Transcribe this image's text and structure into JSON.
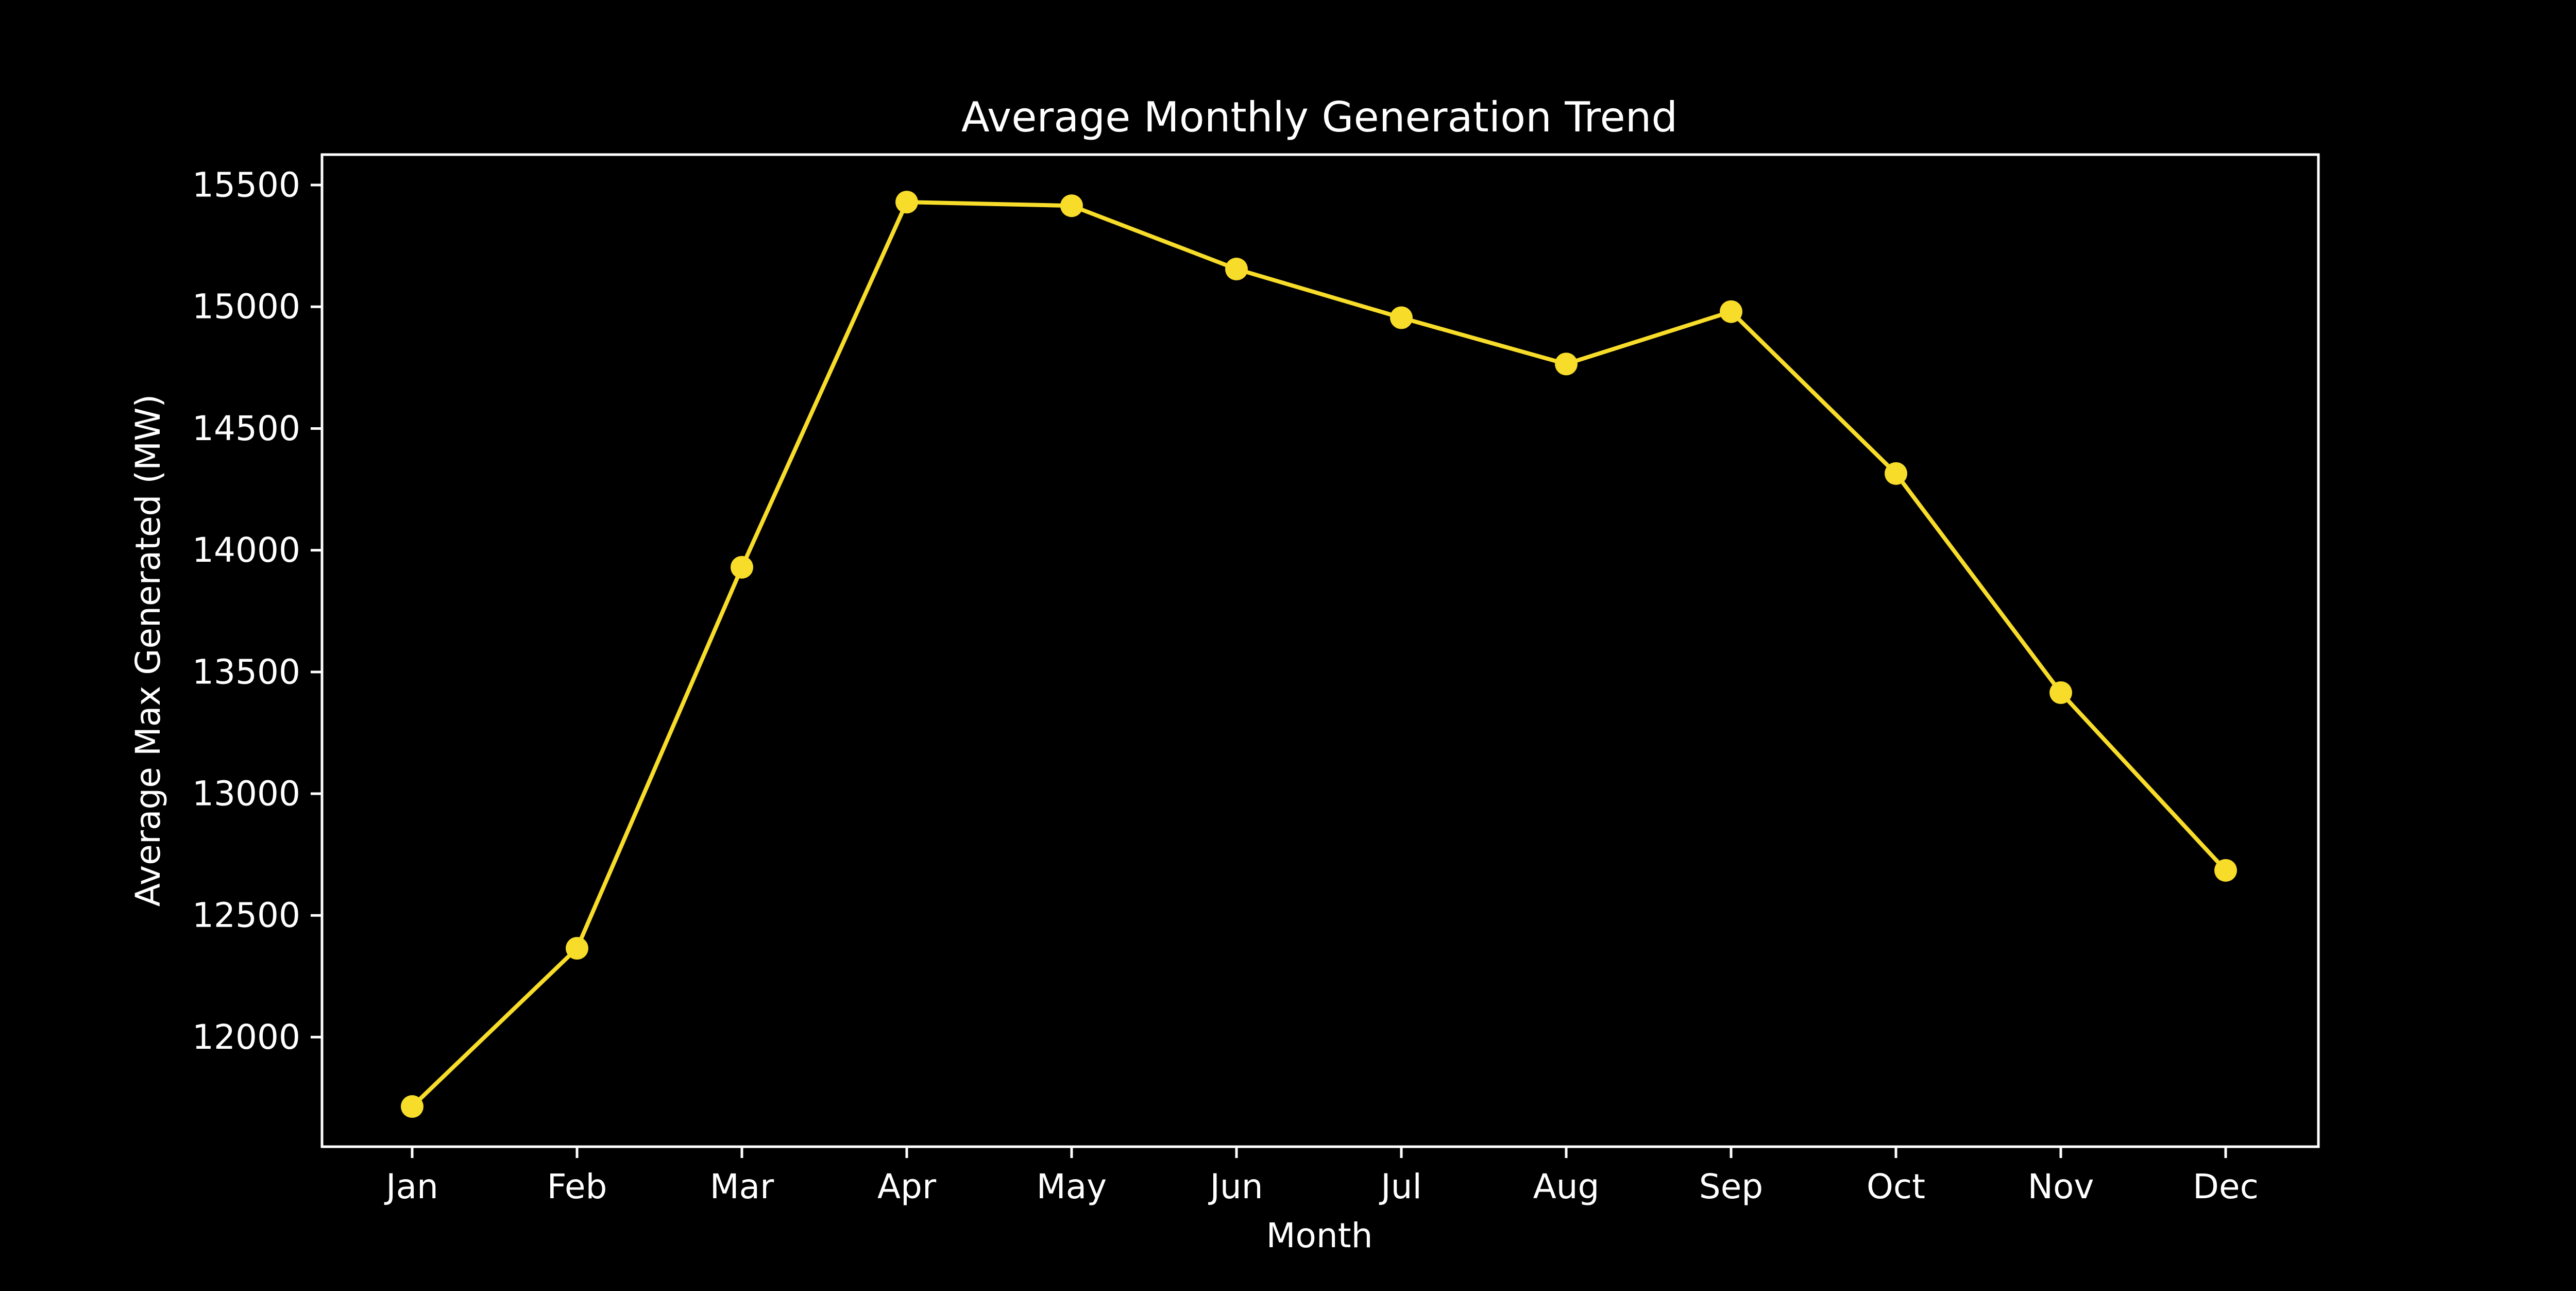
{
  "chart_data": {
    "type": "line",
    "title": "Average Monthly Generation Trend",
    "xlabel": "Month",
    "ylabel": "Average Max Generated (MW)",
    "categories": [
      "Jan",
      "Feb",
      "Mar",
      "Apr",
      "May",
      "Jun",
      "Jul",
      "Aug",
      "Sep",
      "Oct",
      "Nov",
      "Dec"
    ],
    "series": [
      {
        "values": [
          11715,
          12365,
          13930,
          15430,
          15415,
          15155,
          14955,
          14765,
          14980,
          14315,
          13415,
          12685
        ],
        "color": "#f7dc2a"
      }
    ],
    "ylim": [
      11550,
      15625
    ],
    "yticks": [
      12000,
      12500,
      13000,
      13500,
      14000,
      14500,
      15000,
      15500
    ],
    "ytick_labels": [
      "12000",
      "12500",
      "13000",
      "13500",
      "14000",
      "14500",
      "15000",
      "15500"
    ],
    "grid": false,
    "legend": "none",
    "background_color": "#000000",
    "axes_color": "#ffffff",
    "text_color": "#ffffff"
  }
}
